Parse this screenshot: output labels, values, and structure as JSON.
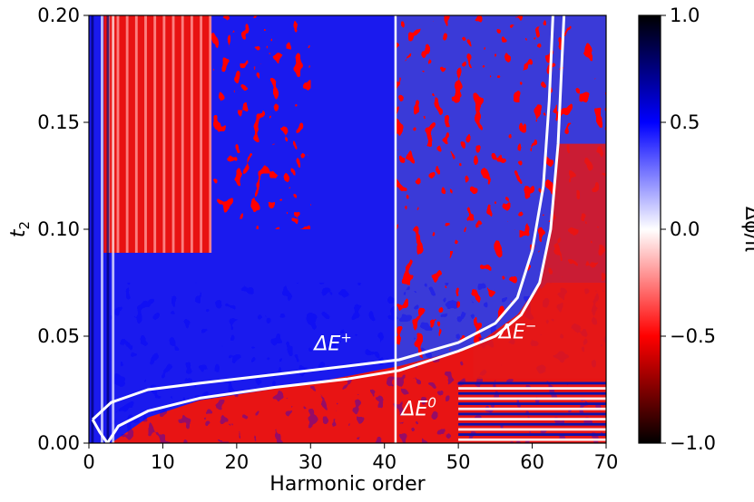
{
  "chart_data": {
    "type": "heatmap",
    "title": "",
    "xlabel": "Harmonic order",
    "ylabel": "t",
    "ylabel_subscript": "2",
    "xlim": [
      0,
      70
    ],
    "ylim": [
      0,
      0.2
    ],
    "x_ticks": [
      "0",
      "10",
      "20",
      "30",
      "40",
      "50",
      "60",
      "70"
    ],
    "y_ticks": [
      "0.00",
      "0.05",
      "0.10",
      "0.15",
      "0.20"
    ],
    "colorbar": {
      "label": "Δϕ/π",
      "range": [
        -1,
        1
      ],
      "ticks": [
        "1.0",
        "0.5",
        "0.0",
        "−0.5",
        "−1.0"
      ],
      "colormap": "seismic",
      "colors": [
        "#000000",
        "#0000ff",
        "#ffffff",
        "#ff0000",
        "#000000"
      ]
    },
    "vertical_line_x": 41.5,
    "curves": [
      {
        "label": "ΔE",
        "label_superscript": "+",
        "points": [
          [
            0.5,
            0.011
          ],
          [
            3,
            0.019
          ],
          [
            8,
            0.025
          ],
          [
            15,
            0.028
          ],
          [
            25,
            0.032
          ],
          [
            35,
            0.036
          ],
          [
            42,
            0.039
          ],
          [
            50,
            0.047
          ],
          [
            55,
            0.056
          ],
          [
            58,
            0.068
          ],
          [
            60,
            0.09
          ],
          [
            61.5,
            0.12
          ],
          [
            62.3,
            0.16
          ],
          [
            62.8,
            0.2
          ]
        ]
      },
      {
        "label": "ΔE",
        "label_superscript": "−",
        "points": [
          [
            2.5,
            0
          ],
          [
            4,
            0.008
          ],
          [
            8,
            0.015
          ],
          [
            15,
            0.021
          ],
          [
            25,
            0.026
          ],
          [
            35,
            0.03
          ],
          [
            42,
            0.034
          ],
          [
            50,
            0.043
          ],
          [
            55,
            0.05
          ],
          [
            58.5,
            0.06
          ],
          [
            61,
            0.075
          ],
          [
            62.5,
            0.1
          ],
          [
            63.5,
            0.14
          ],
          [
            64.3,
            0.2
          ]
        ]
      },
      {
        "label": "",
        "points": [
          [
            0.5,
            0.011
          ],
          [
            1.5,
            0.005
          ],
          [
            2.5,
            0
          ]
        ]
      }
    ],
    "annotations": [
      {
        "text": "ΔE",
        "sup": "+",
        "x": 30.5,
        "y": 0.0435
      },
      {
        "text": "ΔE",
        "sup": "−",
        "x": 55.5,
        "y": 0.049
      },
      {
        "text": "ΔE",
        "sup": "0",
        "x": 42.3,
        "y": 0.013
      }
    ]
  }
}
